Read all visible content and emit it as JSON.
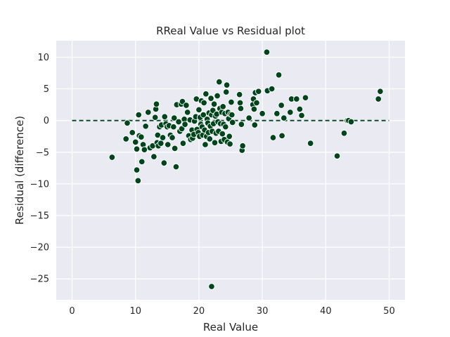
{
  "chart_data": {
    "type": "scatter",
    "title": "RReal Value vs Residual plot",
    "xlabel": "Real Value",
    "ylabel": "Residual (difference)",
    "xlim": [
      -2.5,
      52.5
    ],
    "ylim": [
      -28.3,
      12.6
    ],
    "xticks": [
      0,
      10,
      20,
      30,
      40,
      50
    ],
    "yticks": [
      -25,
      -20,
      -15,
      -10,
      -5,
      0,
      5,
      10
    ],
    "grid": true,
    "background_color": "#EAEAF2",
    "grid_color": "#FFFFFF",
    "marker_color": "#00441B",
    "marker_edge_color": "#FFFFFF",
    "reference_line": {
      "y": 0,
      "x_range": [
        0,
        50
      ],
      "style": "dashed",
      "color": "#00441B"
    },
    "series": [
      {
        "points": [
          [
            6.3,
            -5.8
          ],
          [
            8.5,
            -2.9
          ],
          [
            8.7,
            -0.4
          ],
          [
            9.5,
            -1.9
          ],
          [
            10.0,
            -3.4
          ],
          [
            10.2,
            -4.5
          ],
          [
            10.2,
            -7.8
          ],
          [
            10.4,
            -9.5
          ],
          [
            10.5,
            0.9
          ],
          [
            10.6,
            -2.4
          ],
          [
            10.9,
            -2.6
          ],
          [
            11.0,
            -6.5
          ],
          [
            11.2,
            -3.8
          ],
          [
            11.4,
            -4.6
          ],
          [
            11.6,
            -0.9
          ],
          [
            12.0,
            1.3
          ],
          [
            12.3,
            -4.3
          ],
          [
            12.7,
            -4.0
          ],
          [
            12.9,
            -5.7
          ],
          [
            13.1,
            0.5
          ],
          [
            13.2,
            1.8
          ],
          [
            13.3,
            2.6
          ],
          [
            13.4,
            -3.5
          ],
          [
            13.5,
            -2.3
          ],
          [
            13.6,
            -4.0
          ],
          [
            13.8,
            -1.0
          ],
          [
            14.0,
            -3.6
          ],
          [
            14.1,
            -0.7
          ],
          [
            14.3,
            -2.7
          ],
          [
            14.5,
            -6.7
          ],
          [
            14.6,
            0.6
          ],
          [
            14.8,
            -0.5
          ],
          [
            15.0,
            -1.0
          ],
          [
            15.1,
            -3.8
          ],
          [
            15.3,
            -0.8
          ],
          [
            15.5,
            -2.3
          ],
          [
            15.8,
            -2.7
          ],
          [
            16.0,
            -1.0
          ],
          [
            16.1,
            0.4
          ],
          [
            16.2,
            -4.4
          ],
          [
            16.4,
            -7.3
          ],
          [
            16.5,
            2.5
          ],
          [
            16.8,
            -0.2
          ],
          [
            17.0,
            -1.7
          ],
          [
            17.2,
            2.6
          ],
          [
            17.3,
            -1.3
          ],
          [
            17.4,
            3.0
          ],
          [
            17.5,
            -3.6
          ],
          [
            17.7,
            0.2
          ],
          [
            17.8,
            -0.6
          ],
          [
            18.0,
            2.4
          ],
          [
            18.2,
            1.3
          ],
          [
            18.4,
            -2.4
          ],
          [
            18.6,
            0.1
          ],
          [
            18.7,
            -3.0
          ],
          [
            18.9,
            -1.5
          ],
          [
            19.0,
            -2.8
          ],
          [
            19.2,
            -2.2
          ],
          [
            19.3,
            -0.1
          ],
          [
            19.5,
            0.6
          ],
          [
            19.6,
            3.4
          ],
          [
            19.7,
            -1.4
          ],
          [
            19.9,
            -1.9
          ],
          [
            20.0,
            1.7
          ],
          [
            20.1,
            -2.5
          ],
          [
            20.2,
            0.5
          ],
          [
            20.3,
            -0.6
          ],
          [
            20.4,
            3.1
          ],
          [
            20.5,
            -1.0
          ],
          [
            20.6,
            -2.3
          ],
          [
            20.7,
            0.9
          ],
          [
            20.8,
            2.8
          ],
          [
            20.9,
            -1.5
          ],
          [
            21.0,
            -3.8
          ],
          [
            21.1,
            4.2
          ],
          [
            21.2,
            -2.5
          ],
          [
            21.3,
            0.2
          ],
          [
            21.4,
            -0.4
          ],
          [
            21.5,
            -1.9
          ],
          [
            21.6,
            1.2
          ],
          [
            21.7,
            -2.9
          ],
          [
            21.8,
            -0.9
          ],
          [
            21.9,
            3.5
          ],
          [
            22.0,
            0.9
          ],
          [
            22.0,
            -26.2
          ],
          [
            22.1,
            -1.7
          ],
          [
            22.2,
            1.6
          ],
          [
            22.3,
            -0.5
          ],
          [
            22.4,
            2.6
          ],
          [
            22.5,
            -3.5
          ],
          [
            22.6,
            0.7
          ],
          [
            22.7,
            -2.0
          ],
          [
            22.8,
            1.0
          ],
          [
            22.9,
            3.9
          ],
          [
            23.0,
            -0.2
          ],
          [
            23.1,
            -1.7
          ],
          [
            23.2,
            6.1
          ],
          [
            23.3,
            1.9
          ],
          [
            23.4,
            -0.5
          ],
          [
            23.5,
            -3.3
          ],
          [
            23.6,
            1.3
          ],
          [
            23.7,
            -2.1
          ],
          [
            23.8,
            2.2
          ],
          [
            23.9,
            -0.6
          ],
          [
            24.0,
            -3.0
          ],
          [
            24.1,
            1.1
          ],
          [
            24.2,
            -1.0
          ],
          [
            24.3,
            4.5
          ],
          [
            24.4,
            5.6
          ],
          [
            24.5,
            -3.4
          ],
          [
            24.6,
            1.3
          ],
          [
            24.7,
            0.3
          ],
          [
            24.8,
            -2.5
          ],
          [
            24.9,
            -3.7
          ],
          [
            25.0,
            1.0
          ],
          [
            25.1,
            2.9
          ],
          [
            25.2,
            0.9
          ],
          [
            25.3,
            -0.3
          ],
          [
            26.4,
            4.1
          ],
          [
            26.5,
            2.8
          ],
          [
            26.6,
            1.9
          ],
          [
            26.7,
            -0.6
          ],
          [
            26.8,
            -4.7
          ],
          [
            26.9,
            -4.0
          ],
          [
            27.9,
            0.4
          ],
          [
            28.5,
            2.5
          ],
          [
            28.6,
            3.4
          ],
          [
            28.7,
            1.8
          ],
          [
            28.8,
            -0.7
          ],
          [
            28.9,
            4.4
          ],
          [
            29.1,
            2.8
          ],
          [
            29.4,
            4.6
          ],
          [
            30.0,
            1.1
          ],
          [
            30.7,
            10.8
          ],
          [
            30.8,
            4.7
          ],
          [
            31.5,
            5.0
          ],
          [
            31.7,
            -2.7
          ],
          [
            32.3,
            1.1
          ],
          [
            32.6,
            7.2
          ],
          [
            33.0,
            2.4
          ],
          [
            33.1,
            -2.4
          ],
          [
            33.4,
            0.4
          ],
          [
            34.4,
            1.3
          ],
          [
            34.6,
            3.4
          ],
          [
            35.4,
            3.4
          ],
          [
            35.9,
            1.8
          ],
          [
            36.2,
            0.8
          ],
          [
            36.8,
            3.6
          ],
          [
            37.6,
            -3.6
          ],
          [
            41.8,
            -5.6
          ],
          [
            42.9,
            -2.0
          ],
          [
            43.4,
            0.0
          ],
          [
            43.6,
            0.0
          ],
          [
            44.0,
            -0.2
          ],
          [
            48.3,
            3.4
          ],
          [
            48.6,
            4.6
          ]
        ]
      }
    ]
  }
}
